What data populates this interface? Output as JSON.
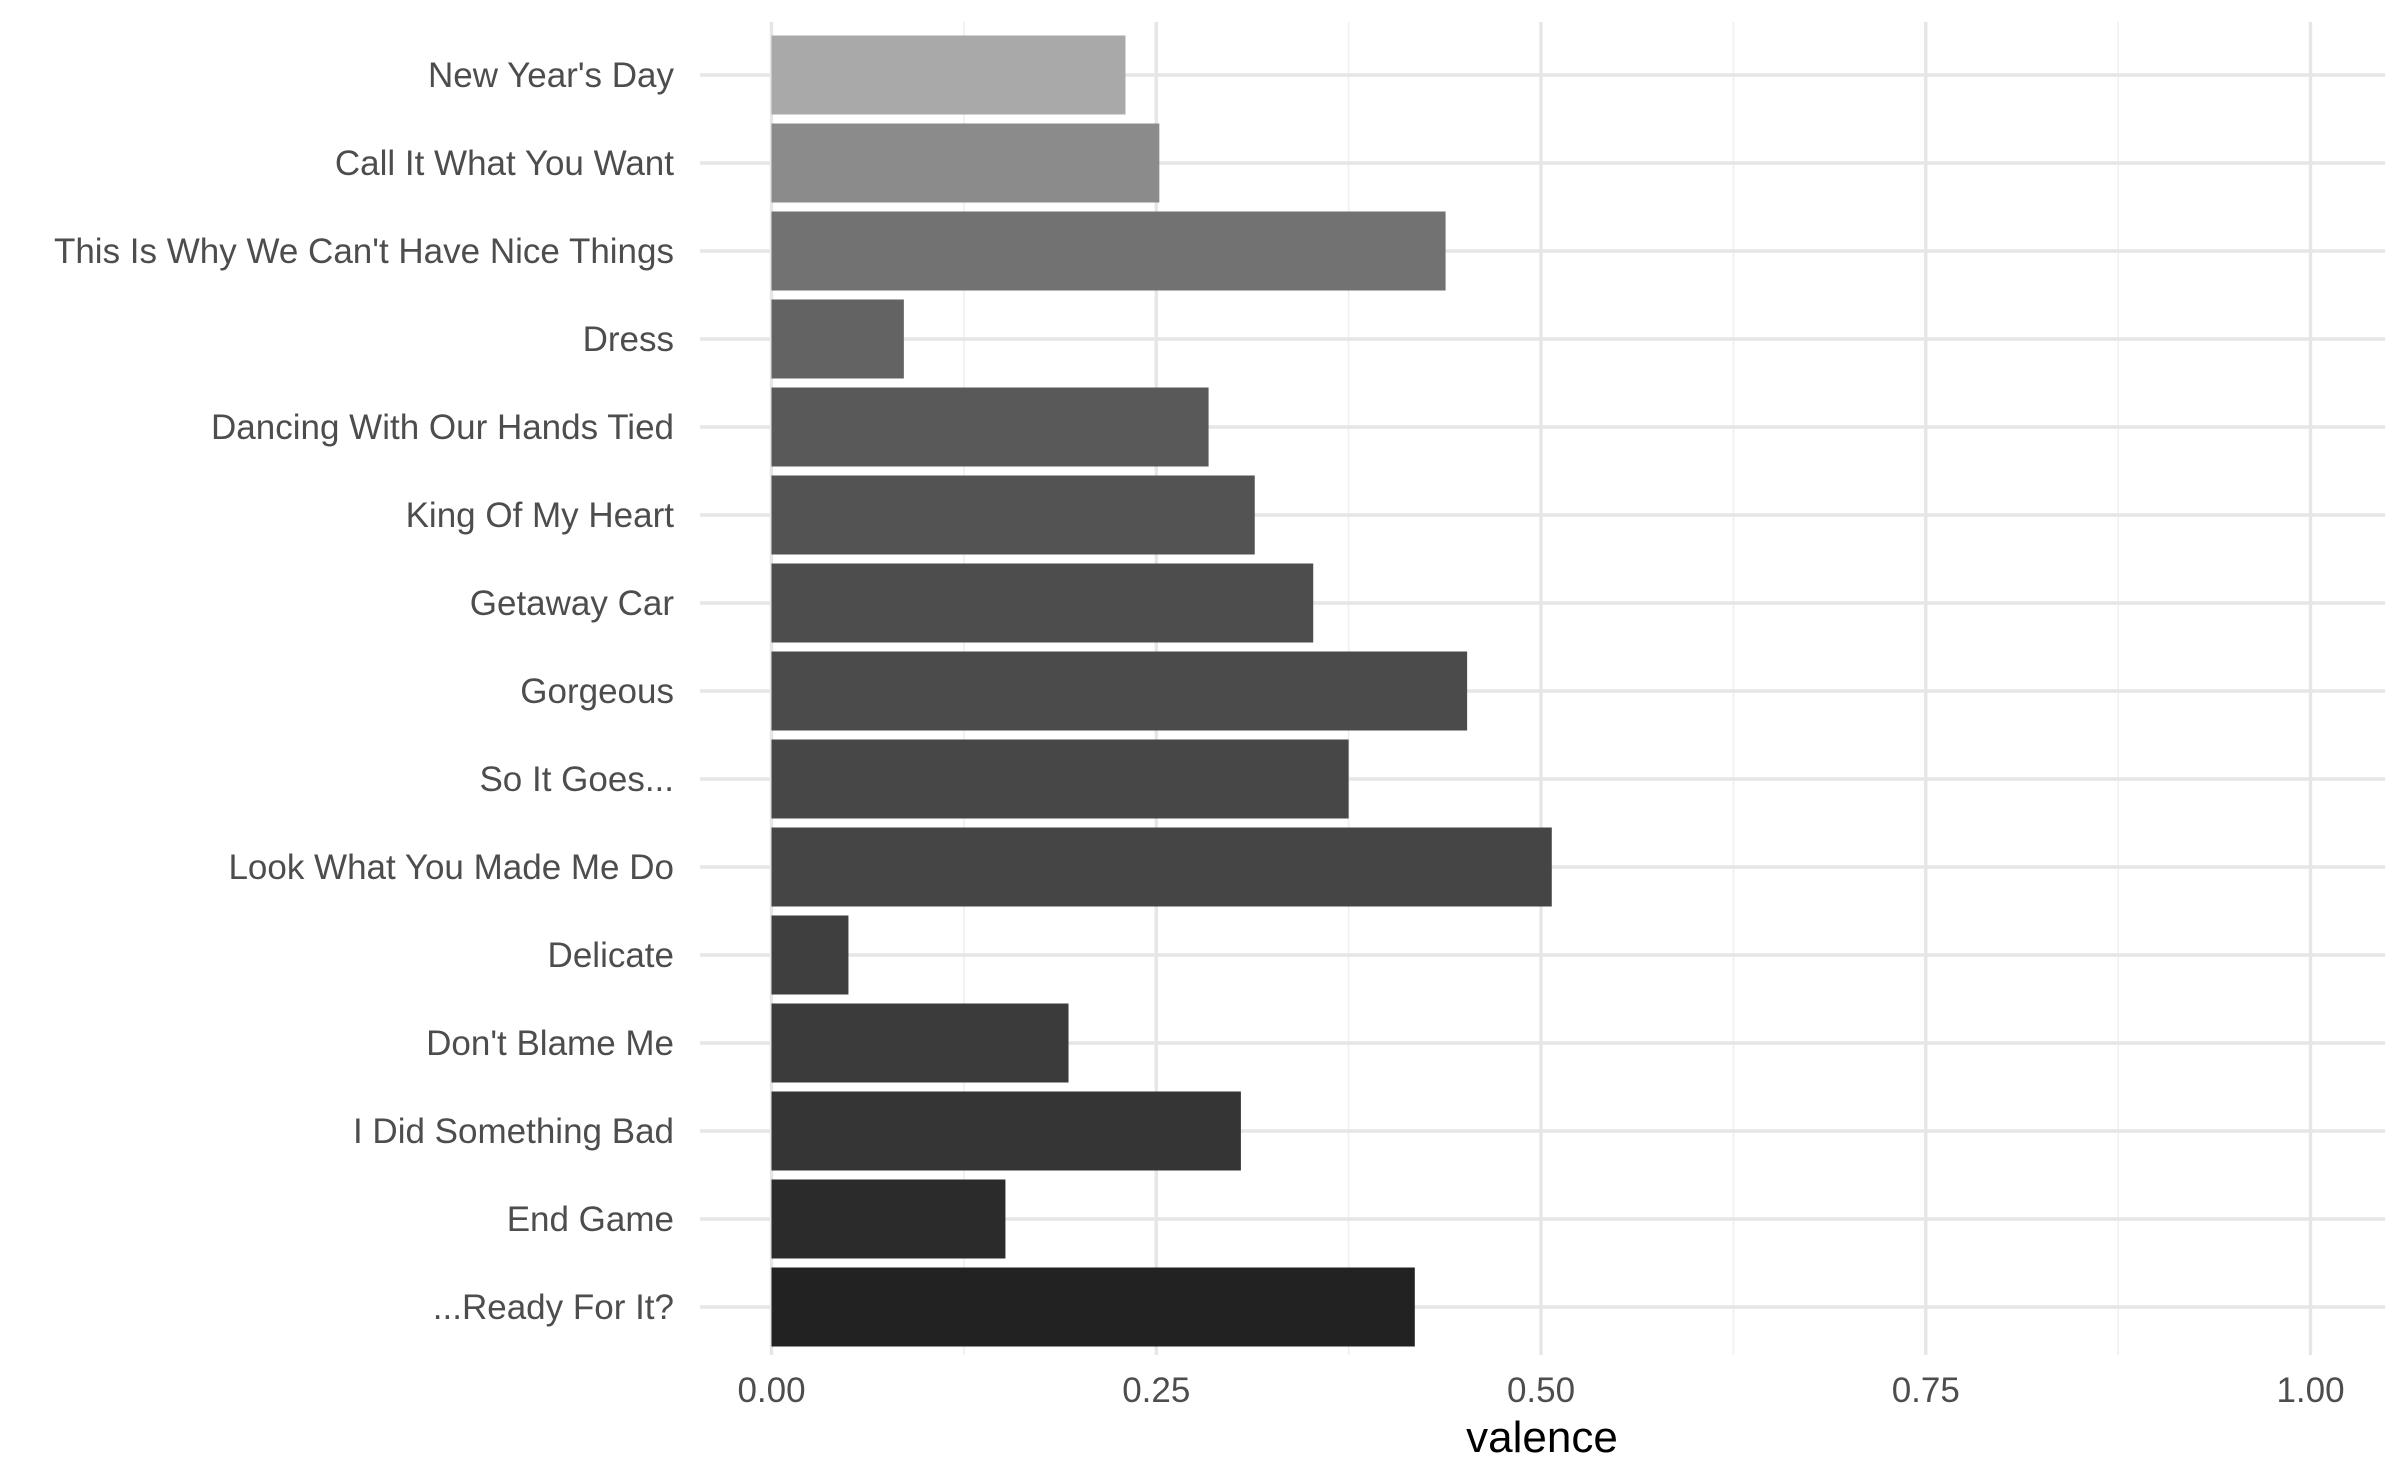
{
  "chart_data": {
    "type": "bar",
    "orientation": "horizontal",
    "title": "",
    "xlabel": "valence",
    "ylabel": "",
    "xlim": [
      0,
      1.05
    ],
    "x_ticks": [
      0,
      0.25,
      0.5,
      0.75,
      1
    ],
    "x_tick_labels": [
      "0.00",
      "0.25",
      "0.50",
      "0.75",
      "1.00"
    ],
    "grid": true,
    "legend": "none",
    "categories": [
      "New Year's Day",
      "Call It What You Want",
      "This Is Why We Can't Have Nice Things",
      "Dress",
      "Dancing With Our Hands Tied",
      "King Of My Heart",
      "Getaway Car",
      "Gorgeous",
      "So It Goes...",
      "Look What You Made Me Do",
      "Delicate",
      "Don't Blame Me",
      "I Did Something Bad",
      "End Game",
      "...Ready For It?"
    ],
    "values": [
      0.23,
      0.252,
      0.438,
      0.086,
      0.284,
      0.314,
      0.352,
      0.452,
      0.375,
      0.507,
      0.05,
      0.193,
      0.305,
      0.152,
      0.418
    ],
    "colors": [
      "#a9a9a9",
      "#8b8b8b",
      "#727272",
      "#636363",
      "#595959",
      "#535353",
      "#4d4d4d",
      "#4b4b4b",
      "#474747",
      "#454545",
      "#3f3f3f",
      "#3b3b3b",
      "#353535",
      "#2b2b2b",
      "#222222"
    ]
  }
}
